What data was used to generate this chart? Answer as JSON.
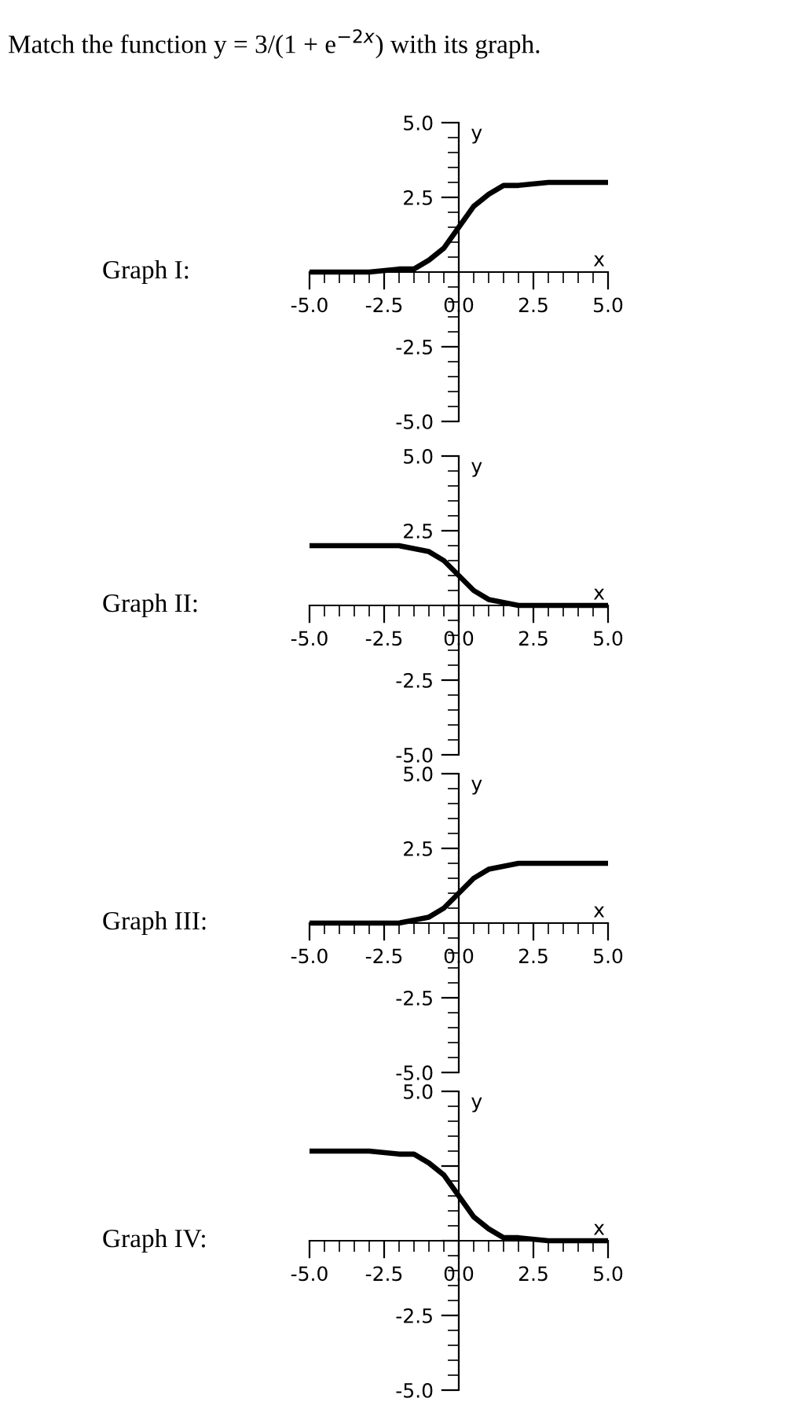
{
  "chart_data": [
    {
      "type": "line",
      "title": "Graph I:",
      "xlabel": "x",
      "ylabel": "y",
      "annotations": [
        "Match the function y = 3/(1 + e$^{−2x}$) with its graph."
      ],
      "x": [
        -5,
        -3,
        -2,
        -1.5,
        -1,
        -0.5,
        0,
        0.5,
        1,
        1.5,
        2,
        3,
        5
      ],
      "series": [
        {
          "color": "#000000",
          "values": [
            0,
            0,
            0.1,
            0.1,
            0.4,
            0.8,
            1.5,
            2.2,
            2.6,
            2.9,
            2.9,
            3,
            3
          ]
        }
      ],
      "xlim": [
        -5,
        5
      ],
      "ylim": [
        -5,
        5
      ],
      "xticks": [
        {
          "value": -5,
          "label": "-5.0"
        },
        {
          "value": -2.5,
          "label": "-2.5"
        },
        {
          "value": 0,
          "label": "0.0"
        },
        {
          "value": 2.5,
          "label": "2.5"
        },
        {
          "value": 5,
          "label": "5.0"
        }
      ],
      "yticks": [
        {
          "value": -5,
          "label": "-5.0"
        },
        {
          "value": -2.5,
          "label": "-2.5"
        },
        {
          "value": 0,
          "label": null
        },
        {
          "value": 2.5,
          "label": "2.5"
        },
        {
          "value": 5,
          "label": "5.0"
        }
      ],
      "grid": false,
      "legend": false,
      "marker": "none",
      "line_style": "solid"
    },
    {
      "type": "line",
      "title": "Graph II:",
      "xlabel": "x",
      "ylabel": "y",
      "x": [
        -5,
        -3,
        -2,
        -1.5,
        -1,
        -0.5,
        0,
        0.5,
        1,
        1.5,
        2,
        3,
        5
      ],
      "series": [
        {
          "color": "#000000",
          "values": [
            2,
            2,
            2,
            1.9,
            1.8,
            1.5,
            1,
            0.5,
            0.2,
            0.1,
            0,
            0,
            0
          ]
        }
      ],
      "xlim": [
        -5,
        5
      ],
      "ylim": [
        -5,
        5
      ],
      "xticks": [
        {
          "value": -5,
          "label": "-5.0"
        },
        {
          "value": -2.5,
          "label": "-2.5"
        },
        {
          "value": 0,
          "label": "0.0"
        },
        {
          "value": 2.5,
          "label": "2.5"
        },
        {
          "value": 5,
          "label": "5.0"
        }
      ],
      "yticks": [
        {
          "value": -5,
          "label": "-5.0"
        },
        {
          "value": -2.5,
          "label": "-2.5"
        },
        {
          "value": 0,
          "label": null
        },
        {
          "value": 2.5,
          "label": "2.5"
        },
        {
          "value": 5,
          "label": "5.0"
        }
      ],
      "grid": false,
      "legend": false,
      "marker": "none",
      "line_style": "solid"
    },
    {
      "type": "line",
      "title": "Graph III:",
      "xlabel": "x",
      "ylabel": "y",
      "x": [
        -5,
        -3,
        -2,
        -1.5,
        -1,
        -0.5,
        0,
        0.5,
        1,
        1.5,
        2,
        3,
        5
      ],
      "series": [
        {
          "color": "#000000",
          "values": [
            0,
            0,
            0,
            0.1,
            0.2,
            0.5,
            1,
            1.5,
            1.8,
            1.9,
            2,
            2,
            2
          ]
        }
      ],
      "xlim": [
        -5,
        5
      ],
      "ylim": [
        -5,
        5
      ],
      "xticks": [
        {
          "value": -5,
          "label": "-5.0"
        },
        {
          "value": -2.5,
          "label": "-2.5"
        },
        {
          "value": 0,
          "label": "0.0"
        },
        {
          "value": 2.5,
          "label": "2.5"
        },
        {
          "value": 5,
          "label": "5.0"
        }
      ],
      "yticks": [
        {
          "value": -5,
          "label": "-5.0"
        },
        {
          "value": -2.5,
          "label": "-2.5"
        },
        {
          "value": 0,
          "label": null
        },
        {
          "value": 2.5,
          "label": "2.5"
        },
        {
          "value": 5,
          "label": "5.0"
        }
      ],
      "grid": false,
      "legend": false,
      "marker": "none",
      "line_style": "solid"
    },
    {
      "type": "line",
      "title": "Graph IV:",
      "xlabel": "x",
      "ylabel": "y",
      "x": [
        -5,
        -3,
        -2,
        -1.5,
        -1,
        -0.5,
        0,
        0.5,
        1,
        1.5,
        2,
        3,
        5
      ],
      "series": [
        {
          "color": "#000000",
          "values": [
            3,
            3,
            2.9,
            2.9,
            2.6,
            2.2,
            1.5,
            0.8,
            0.4,
            0.1,
            0.1,
            0,
            0
          ]
        }
      ],
      "xlim": [
        -5,
        5
      ],
      "ylim": [
        -5,
        5
      ],
      "xticks": [
        {
          "value": -5,
          "label": "-5.0"
        },
        {
          "value": -2.5,
          "label": "-2.5"
        },
        {
          "value": 0,
          "label": "0.0"
        },
        {
          "value": 2.5,
          "label": "2.5"
        },
        {
          "value": 5,
          "label": "5.0"
        }
      ],
      "yticks": [
        {
          "value": -5,
          "label": "-5.0"
        },
        {
          "value": -2.5,
          "label": "-2.5"
        },
        {
          "value": 0,
          "label": null
        },
        {
          "value": 2.5,
          "label": null
        },
        {
          "value": 5,
          "label": "5.0"
        }
      ],
      "grid": false,
      "legend": false,
      "marker": "none",
      "line_style": "solid"
    }
  ]
}
